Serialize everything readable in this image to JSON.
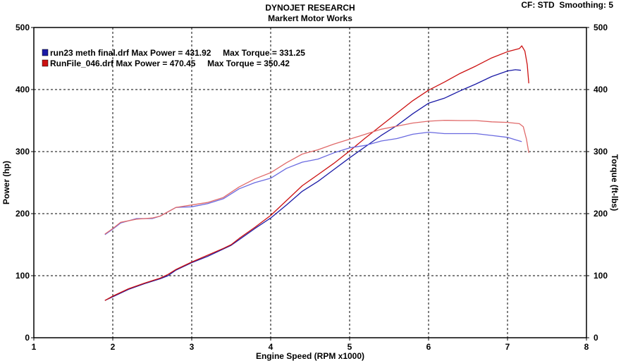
{
  "header": {
    "title": "DYNOJET RESEARCH",
    "subtitle": "Markert Motor Works",
    "settings": "CF: STD  Smoothing: 5"
  },
  "chart_data": {
    "type": "line",
    "xlabel": "Engine Speed (RPM x1000)",
    "ylabel_left": "Power (hp)",
    "ylabel_right": "Torque (ft-lbs)",
    "xlim": [
      1,
      8
    ],
    "ylim": [
      0,
      500
    ],
    "x_ticks": [
      "1",
      "2",
      "3",
      "4",
      "5",
      "6",
      "7",
      "8"
    ],
    "y_ticks": [
      "0",
      "100",
      "200",
      "300",
      "400",
      "500"
    ],
    "grid": true,
    "legend_placement": "top-left",
    "legend": [
      {
        "text": "run23 meth final.drf Max Power = 431.92     Max Torque = 331.25",
        "color": "#1a1aa6"
      },
      {
        "text": "RunFile_046.drf Max Power = 470.45     Max Torque = 350.42",
        "color": "#cc1111"
      }
    ],
    "series": [
      {
        "file": "run23 meth final.drf",
        "measure": "power",
        "color": "#1a1aa6",
        "points": [
          [
            1.9,
            60
          ],
          [
            2.0,
            66
          ],
          [
            2.2,
            78
          ],
          [
            2.4,
            87
          ],
          [
            2.6,
            95
          ],
          [
            2.7,
            100
          ],
          [
            2.8,
            109
          ],
          [
            3.0,
            121
          ],
          [
            3.2,
            131
          ],
          [
            3.4,
            143
          ],
          [
            3.5,
            149
          ],
          [
            3.6,
            158
          ],
          [
            3.8,
            176
          ],
          [
            4.0,
            193
          ],
          [
            4.2,
            214
          ],
          [
            4.4,
            236
          ],
          [
            4.6,
            252
          ],
          [
            4.8,
            271
          ],
          [
            5.0,
            290
          ],
          [
            5.2,
            308
          ],
          [
            5.4,
            326
          ],
          [
            5.6,
            342
          ],
          [
            5.8,
            361
          ],
          [
            6.0,
            378
          ],
          [
            6.2,
            386
          ],
          [
            6.4,
            398
          ],
          [
            6.6,
            409
          ],
          [
            6.8,
            421
          ],
          [
            7.0,
            430
          ],
          [
            7.1,
            431.92
          ],
          [
            7.17,
            431
          ]
        ]
      },
      {
        "file": "RunFile_046.drf",
        "measure": "power",
        "color": "#cc1111",
        "points": [
          [
            1.9,
            60
          ],
          [
            2.0,
            67
          ],
          [
            2.2,
            79
          ],
          [
            2.4,
            88
          ],
          [
            2.6,
            96
          ],
          [
            2.7,
            102
          ],
          [
            2.8,
            110
          ],
          [
            3.0,
            122
          ],
          [
            3.2,
            133
          ],
          [
            3.4,
            144
          ],
          [
            3.5,
            150
          ],
          [
            3.6,
            160
          ],
          [
            3.8,
            178
          ],
          [
            4.0,
            197
          ],
          [
            4.2,
            221
          ],
          [
            4.4,
            245
          ],
          [
            4.6,
            263
          ],
          [
            4.8,
            281
          ],
          [
            5.0,
            301
          ],
          [
            5.2,
            322
          ],
          [
            5.4,
            342
          ],
          [
            5.6,
            362
          ],
          [
            5.8,
            382
          ],
          [
            6.0,
            399
          ],
          [
            6.2,
            412
          ],
          [
            6.4,
            426
          ],
          [
            6.6,
            438
          ],
          [
            6.8,
            451
          ],
          [
            7.0,
            461
          ],
          [
            7.15,
            466
          ],
          [
            7.18,
            470.45
          ],
          [
            7.22,
            462
          ],
          [
            7.25,
            440
          ],
          [
            7.27,
            410
          ]
        ]
      },
      {
        "file": "run23 meth final.drf",
        "measure": "torque",
        "color": "#6a6ae0",
        "points": [
          [
            1.9,
            166
          ],
          [
            2.0,
            175
          ],
          [
            2.1,
            185
          ],
          [
            2.3,
            192
          ],
          [
            2.5,
            192
          ],
          [
            2.6,
            196
          ],
          [
            2.8,
            210
          ],
          [
            3.0,
            211
          ],
          [
            3.2,
            216
          ],
          [
            3.4,
            224
          ],
          [
            3.6,
            240
          ],
          [
            3.8,
            250
          ],
          [
            4.0,
            257
          ],
          [
            4.2,
            273
          ],
          [
            4.4,
            283
          ],
          [
            4.6,
            288
          ],
          [
            4.8,
            298
          ],
          [
            5.0,
            306
          ],
          [
            5.2,
            310
          ],
          [
            5.4,
            317
          ],
          [
            5.6,
            321
          ],
          [
            5.8,
            328
          ],
          [
            6.0,
            331.25
          ],
          [
            6.2,
            329
          ],
          [
            6.4,
            329
          ],
          [
            6.6,
            329
          ],
          [
            6.8,
            326
          ],
          [
            7.0,
            323
          ],
          [
            7.1,
            319
          ],
          [
            7.18,
            316
          ]
        ]
      },
      {
        "file": "RunFile_046.drf",
        "measure": "torque",
        "color": "#e06a6a",
        "points": [
          [
            1.9,
            167
          ],
          [
            2.0,
            176
          ],
          [
            2.1,
            186
          ],
          [
            2.3,
            191
          ],
          [
            2.5,
            193
          ],
          [
            2.6,
            196
          ],
          [
            2.8,
            210
          ],
          [
            3.0,
            214
          ],
          [
            3.2,
            218
          ],
          [
            3.4,
            226
          ],
          [
            3.6,
            243
          ],
          [
            3.8,
            256
          ],
          [
            4.0,
            266
          ],
          [
            4.2,
            282
          ],
          [
            4.4,
            296
          ],
          [
            4.6,
            303
          ],
          [
            4.8,
            312
          ],
          [
            5.0,
            320
          ],
          [
            5.2,
            328
          ],
          [
            5.4,
            336
          ],
          [
            5.6,
            341
          ],
          [
            5.8,
            346
          ],
          [
            6.0,
            349
          ],
          [
            6.2,
            350.42
          ],
          [
            6.4,
            350
          ],
          [
            6.6,
            350
          ],
          [
            6.8,
            348
          ],
          [
            7.0,
            347
          ],
          [
            7.15,
            345
          ],
          [
            7.2,
            340
          ],
          [
            7.24,
            320
          ],
          [
            7.27,
            298
          ]
        ]
      }
    ]
  }
}
